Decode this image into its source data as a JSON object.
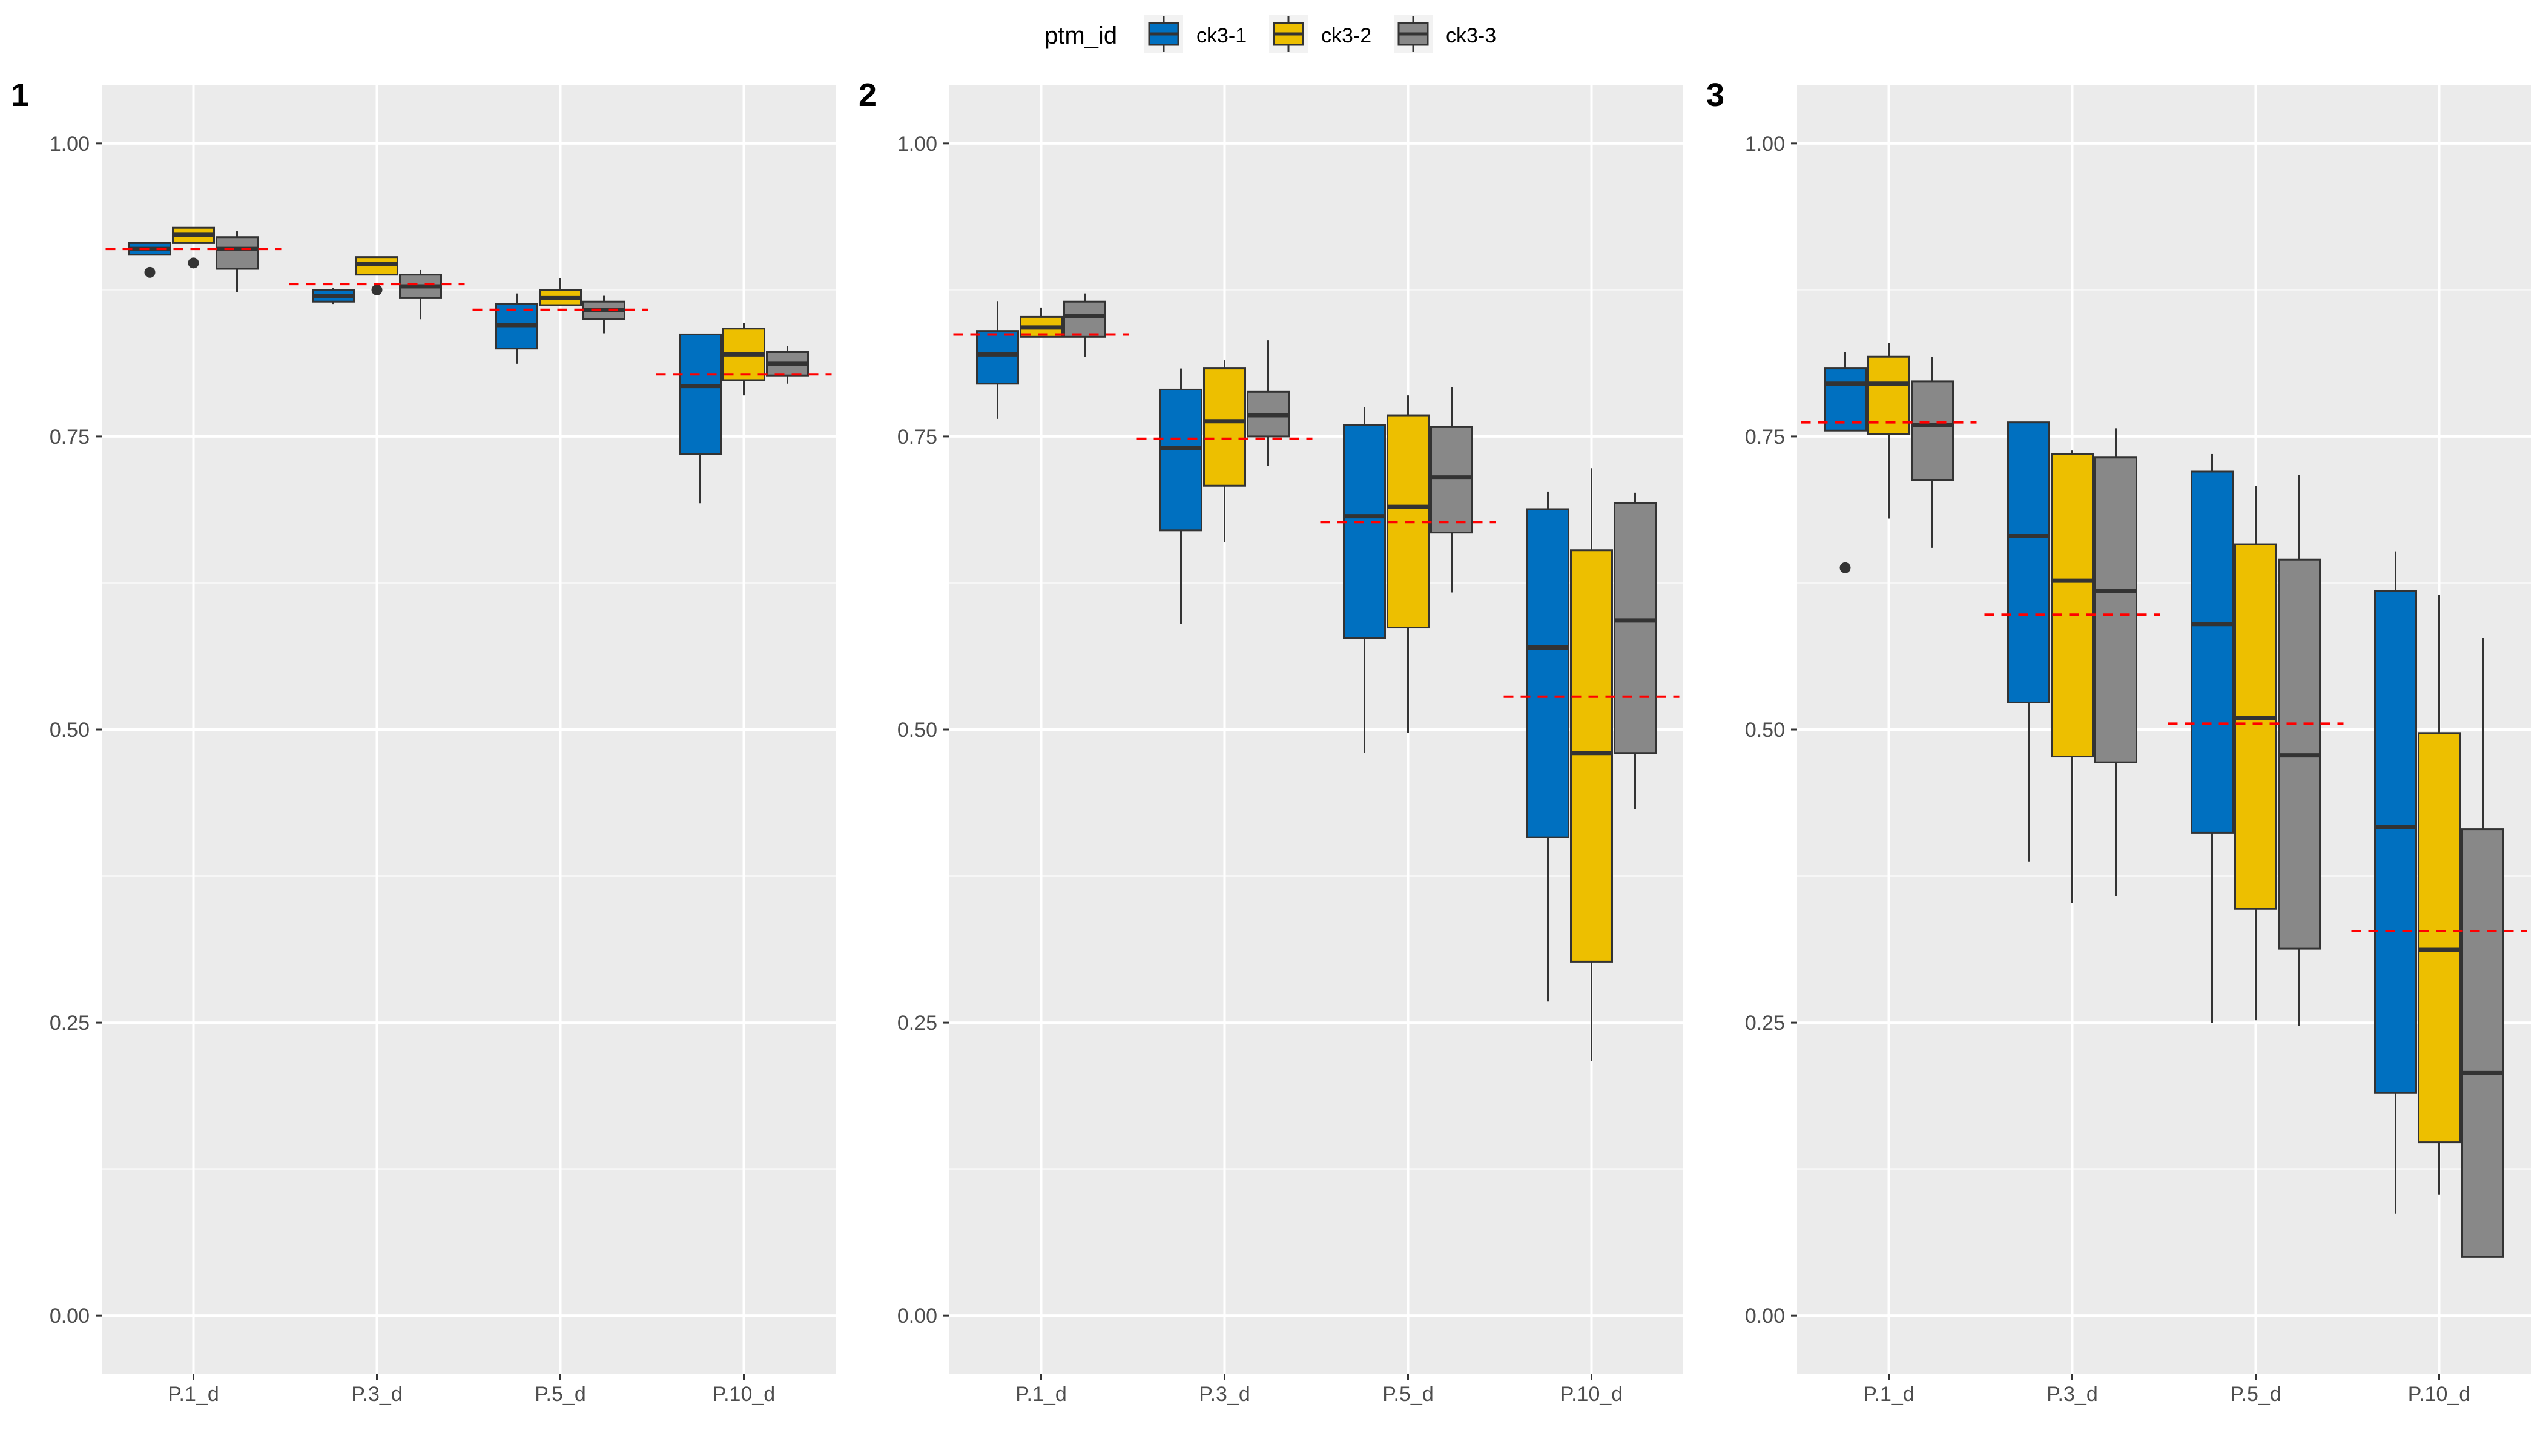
{
  "legend": {
    "title": "ptm_id",
    "placement": "top-center",
    "entries": [
      {
        "label": "ck3-1",
        "color": "#0070C0"
      },
      {
        "label": "ck3-2",
        "color": "#EDBF00"
      },
      {
        "label": "ck3-3",
        "color": "#888888"
      }
    ]
  },
  "chart_data": [
    {
      "type": "boxplot",
      "panel_label": "1",
      "categories": [
        "P.1_d",
        "P.3_d",
        "P.5_d",
        "P.10_d"
      ],
      "y_ticks": [
        "0.00",
        "0.25",
        "0.50",
        "0.75",
        "1.00"
      ],
      "ylim": [
        -0.05,
        1.05
      ],
      "grid": true,
      "reference_line": {
        "style": "dashed",
        "color": "#FF0000",
        "values": [
          0.91,
          0.88,
          0.858,
          0.803
        ]
      },
      "series": [
        {
          "name": "ck3-1",
          "boxes": [
            {
              "min": 0.905,
              "q1": 0.905,
              "median": 0.91,
              "q3": 0.915,
              "max": 0.915,
              "outliers": [
                0.89
              ]
            },
            {
              "min": 0.863,
              "q1": 0.865,
              "median": 0.87,
              "q3": 0.875,
              "max": 0.877,
              "outliers": []
            },
            {
              "min": 0.812,
              "q1": 0.825,
              "median": 0.845,
              "q3": 0.863,
              "max": 0.872,
              "outliers": []
            },
            {
              "min": 0.693,
              "q1": 0.735,
              "median": 0.793,
              "q3": 0.837,
              "max": 0.837,
              "outliers": []
            }
          ]
        },
        {
          "name": "ck3-2",
          "boxes": [
            {
              "min": 0.915,
              "q1": 0.915,
              "median": 0.922,
              "q3": 0.928,
              "max": 0.928,
              "outliers": [
                0.898
              ]
            },
            {
              "min": 0.888,
              "q1": 0.888,
              "median": 0.897,
              "q3": 0.903,
              "max": 0.903,
              "outliers": [
                0.875
              ]
            },
            {
              "min": 0.862,
              "q1": 0.862,
              "median": 0.868,
              "q3": 0.875,
              "max": 0.885,
              "outliers": []
            },
            {
              "min": 0.785,
              "q1": 0.798,
              "median": 0.82,
              "q3": 0.842,
              "max": 0.847,
              "outliers": []
            }
          ]
        },
        {
          "name": "ck3-3",
          "boxes": [
            {
              "min": 0.873,
              "q1": 0.893,
              "median": 0.91,
              "q3": 0.92,
              "max": 0.925,
              "outliers": []
            },
            {
              "min": 0.85,
              "q1": 0.868,
              "median": 0.878,
              "q3": 0.888,
              "max": 0.892,
              "outliers": []
            },
            {
              "min": 0.838,
              "q1": 0.85,
              "median": 0.858,
              "q3": 0.865,
              "max": 0.87,
              "outliers": []
            },
            {
              "min": 0.795,
              "q1": 0.802,
              "median": 0.812,
              "q3": 0.822,
              "max": 0.827,
              "outliers": []
            }
          ]
        }
      ]
    },
    {
      "type": "boxplot",
      "panel_label": "2",
      "categories": [
        "P.1_d",
        "P.3_d",
        "P.5_d",
        "P.10_d"
      ],
      "y_ticks": [
        "0.00",
        "0.25",
        "0.50",
        "0.75",
        "1.00"
      ],
      "ylim": [
        -0.05,
        1.05
      ],
      "grid": true,
      "reference_line": {
        "style": "dashed",
        "color": "#FF0000",
        "values": [
          0.837,
          0.748,
          0.677,
          0.528
        ]
      },
      "series": [
        {
          "name": "ck3-1",
          "boxes": [
            {
              "min": 0.765,
              "q1": 0.795,
              "median": 0.82,
              "q3": 0.84,
              "max": 0.865,
              "outliers": []
            },
            {
              "min": 0.59,
              "q1": 0.67,
              "median": 0.74,
              "q3": 0.79,
              "max": 0.808,
              "outliers": []
            },
            {
              "min": 0.48,
              "q1": 0.578,
              "median": 0.682,
              "q3": 0.76,
              "max": 0.775,
              "outliers": []
            },
            {
              "min": 0.268,
              "q1": 0.408,
              "median": 0.57,
              "q3": 0.688,
              "max": 0.703,
              "outliers": []
            }
          ]
        },
        {
          "name": "ck3-2",
          "boxes": [
            {
              "min": 0.835,
              "q1": 0.835,
              "median": 0.843,
              "q3": 0.852,
              "max": 0.86,
              "outliers": []
            },
            {
              "min": 0.66,
              "q1": 0.708,
              "median": 0.763,
              "q3": 0.808,
              "max": 0.815,
              "outliers": []
            },
            {
              "min": 0.497,
              "q1": 0.587,
              "median": 0.69,
              "q3": 0.768,
              "max": 0.785,
              "outliers": []
            },
            {
              "min": 0.217,
              "q1": 0.302,
              "median": 0.48,
              "q3": 0.653,
              "max": 0.723,
              "outliers": []
            }
          ]
        },
        {
          "name": "ck3-3",
          "boxes": [
            {
              "min": 0.818,
              "q1": 0.835,
              "median": 0.853,
              "q3": 0.865,
              "max": 0.872,
              "outliers": []
            },
            {
              "min": 0.725,
              "q1": 0.75,
              "median": 0.768,
              "q3": 0.788,
              "max": 0.832,
              "outliers": []
            },
            {
              "min": 0.617,
              "q1": 0.668,
              "median": 0.715,
              "q3": 0.758,
              "max": 0.792,
              "outliers": []
            },
            {
              "min": 0.432,
              "q1": 0.48,
              "median": 0.593,
              "q3": 0.693,
              "max": 0.702,
              "outliers": []
            }
          ]
        }
      ]
    },
    {
      "type": "boxplot",
      "panel_label": "3",
      "categories": [
        "P.1_d",
        "P.3_d",
        "P.5_d",
        "P.10_d"
      ],
      "y_ticks": [
        "0.00",
        "0.25",
        "0.50",
        "0.75",
        "1.00"
      ],
      "ylim": [
        -0.05,
        1.05
      ],
      "grid": true,
      "reference_line": {
        "style": "dashed",
        "color": "#FF0000",
        "values": [
          0.762,
          0.598,
          0.505,
          0.328
        ]
      },
      "series": [
        {
          "name": "ck3-1",
          "boxes": [
            {
              "min": 0.755,
              "q1": 0.755,
              "median": 0.795,
              "q3": 0.808,
              "max": 0.822,
              "outliers": [
                0.638
              ]
            },
            {
              "min": 0.387,
              "q1": 0.523,
              "median": 0.665,
              "q3": 0.762,
              "max": 0.762,
              "outliers": []
            },
            {
              "min": 0.25,
              "q1": 0.412,
              "median": 0.59,
              "q3": 0.72,
              "max": 0.735,
              "outliers": []
            },
            {
              "min": 0.087,
              "q1": 0.19,
              "median": 0.417,
              "q3": 0.618,
              "max": 0.652,
              "outliers": []
            }
          ]
        },
        {
          "name": "ck3-2",
          "boxes": [
            {
              "min": 0.68,
              "q1": 0.752,
              "median": 0.795,
              "q3": 0.818,
              "max": 0.83,
              "outliers": []
            },
            {
              "min": 0.352,
              "q1": 0.477,
              "median": 0.627,
              "q3": 0.735,
              "max": 0.738,
              "outliers": []
            },
            {
              "min": 0.252,
              "q1": 0.347,
              "median": 0.51,
              "q3": 0.658,
              "max": 0.708,
              "outliers": []
            },
            {
              "min": 0.103,
              "q1": 0.148,
              "median": 0.312,
              "q3": 0.497,
              "max": 0.615,
              "outliers": []
            }
          ]
        },
        {
          "name": "ck3-3",
          "boxes": [
            {
              "min": 0.655,
              "q1": 0.713,
              "median": 0.76,
              "q3": 0.797,
              "max": 0.818,
              "outliers": []
            },
            {
              "min": 0.358,
              "q1": 0.472,
              "median": 0.618,
              "q3": 0.732,
              "max": 0.757,
              "outliers": []
            },
            {
              "min": 0.247,
              "q1": 0.313,
              "median": 0.478,
              "q3": 0.645,
              "max": 0.717,
              "outliers": []
            },
            {
              "min": 0.05,
              "q1": 0.05,
              "median": 0.207,
              "q3": 0.415,
              "max": 0.578,
              "outliers": []
            }
          ]
        }
      ]
    }
  ]
}
